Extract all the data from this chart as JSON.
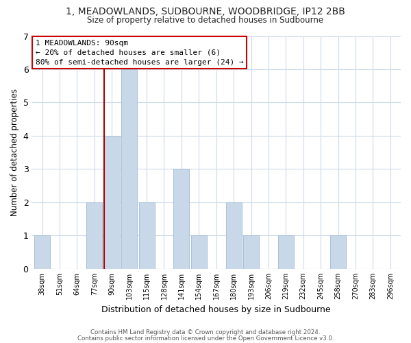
{
  "title": "1, MEADOWLANDS, SUDBOURNE, WOODBRIDGE, IP12 2BB",
  "subtitle": "Size of property relative to detached houses in Sudbourne",
  "xlabel": "Distribution of detached houses by size in Sudbourne",
  "ylabel": "Number of detached properties",
  "bar_labels": [
    "38sqm",
    "51sqm",
    "64sqm",
    "77sqm",
    "90sqm",
    "103sqm",
    "115sqm",
    "128sqm",
    "141sqm",
    "154sqm",
    "167sqm",
    "180sqm",
    "193sqm",
    "206sqm",
    "219sqm",
    "232sqm",
    "245sqm",
    "258sqm",
    "270sqm",
    "283sqm",
    "296sqm"
  ],
  "bar_values": [
    1,
    0,
    0,
    2,
    4,
    6,
    2,
    0,
    3,
    1,
    0,
    2,
    1,
    0,
    1,
    0,
    0,
    1,
    0,
    0,
    0
  ],
  "highlight_index": 4,
  "bar_color": "#c8d8e8",
  "bar_edgecolor": "#a8c0d8",
  "highlight_line_color": "#aa0000",
  "ylim": [
    0,
    7
  ],
  "yticks": [
    0,
    1,
    2,
    3,
    4,
    5,
    6,
    7
  ],
  "annotation_title": "1 MEADOWLANDS: 90sqm",
  "annotation_line1": "← 20% of detached houses are smaller (6)",
  "annotation_line2": "80% of semi-detached houses are larger (24) →",
  "annotation_box_color": "#ffffff",
  "annotation_box_edgecolor": "#cc0000",
  "footer_line1": "Contains HM Land Registry data © Crown copyright and database right 2024.",
  "footer_line2": "Contains public sector information licensed under the Open Government Licence v3.0.",
  "background_color": "#ffffff",
  "grid_color": "#ccdaea"
}
